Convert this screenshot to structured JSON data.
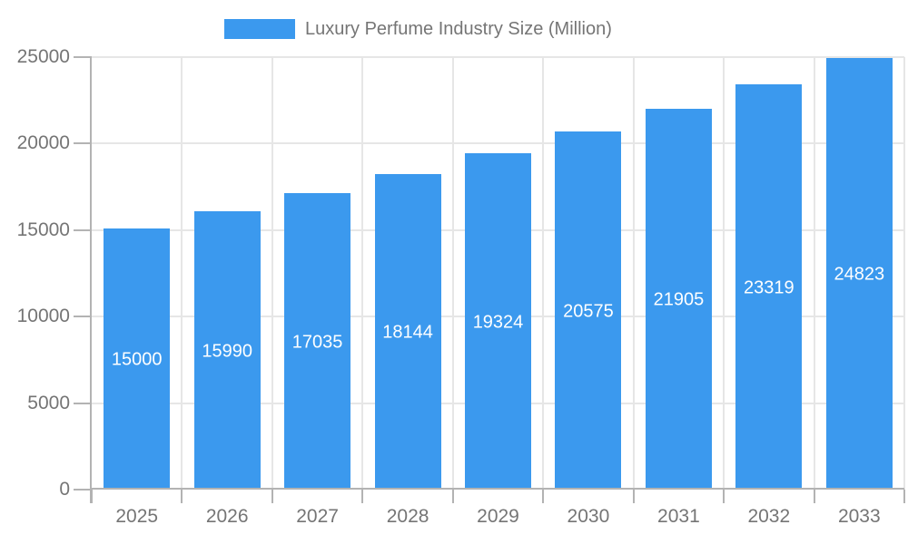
{
  "chart_data": {
    "type": "bar",
    "title": "Luxury Perfume Industry Size (Million)",
    "xlabel": "",
    "ylabel": "",
    "categories": [
      "2025",
      "2026",
      "2027",
      "2028",
      "2029",
      "2030",
      "2031",
      "2032",
      "2033"
    ],
    "values": [
      15000,
      15990,
      17035,
      18144,
      19324,
      20575,
      21905,
      23319,
      24823
    ],
    "ylim": [
      0,
      25000
    ],
    "yticks": [
      0,
      5000,
      10000,
      15000,
      20000,
      25000
    ],
    "grid": true,
    "legend": {
      "position": "top",
      "label": "Luxury Perfume Industry Size (Million)"
    },
    "value_labels": {
      "position": "center-of-bar",
      "color": "#ffffff"
    },
    "colors": {
      "bar": "#3b99ee",
      "axis_text": "#757575",
      "axis_line": "#b3b3b3",
      "gridline": "#e6e6e6",
      "background": "#ffffff"
    }
  }
}
